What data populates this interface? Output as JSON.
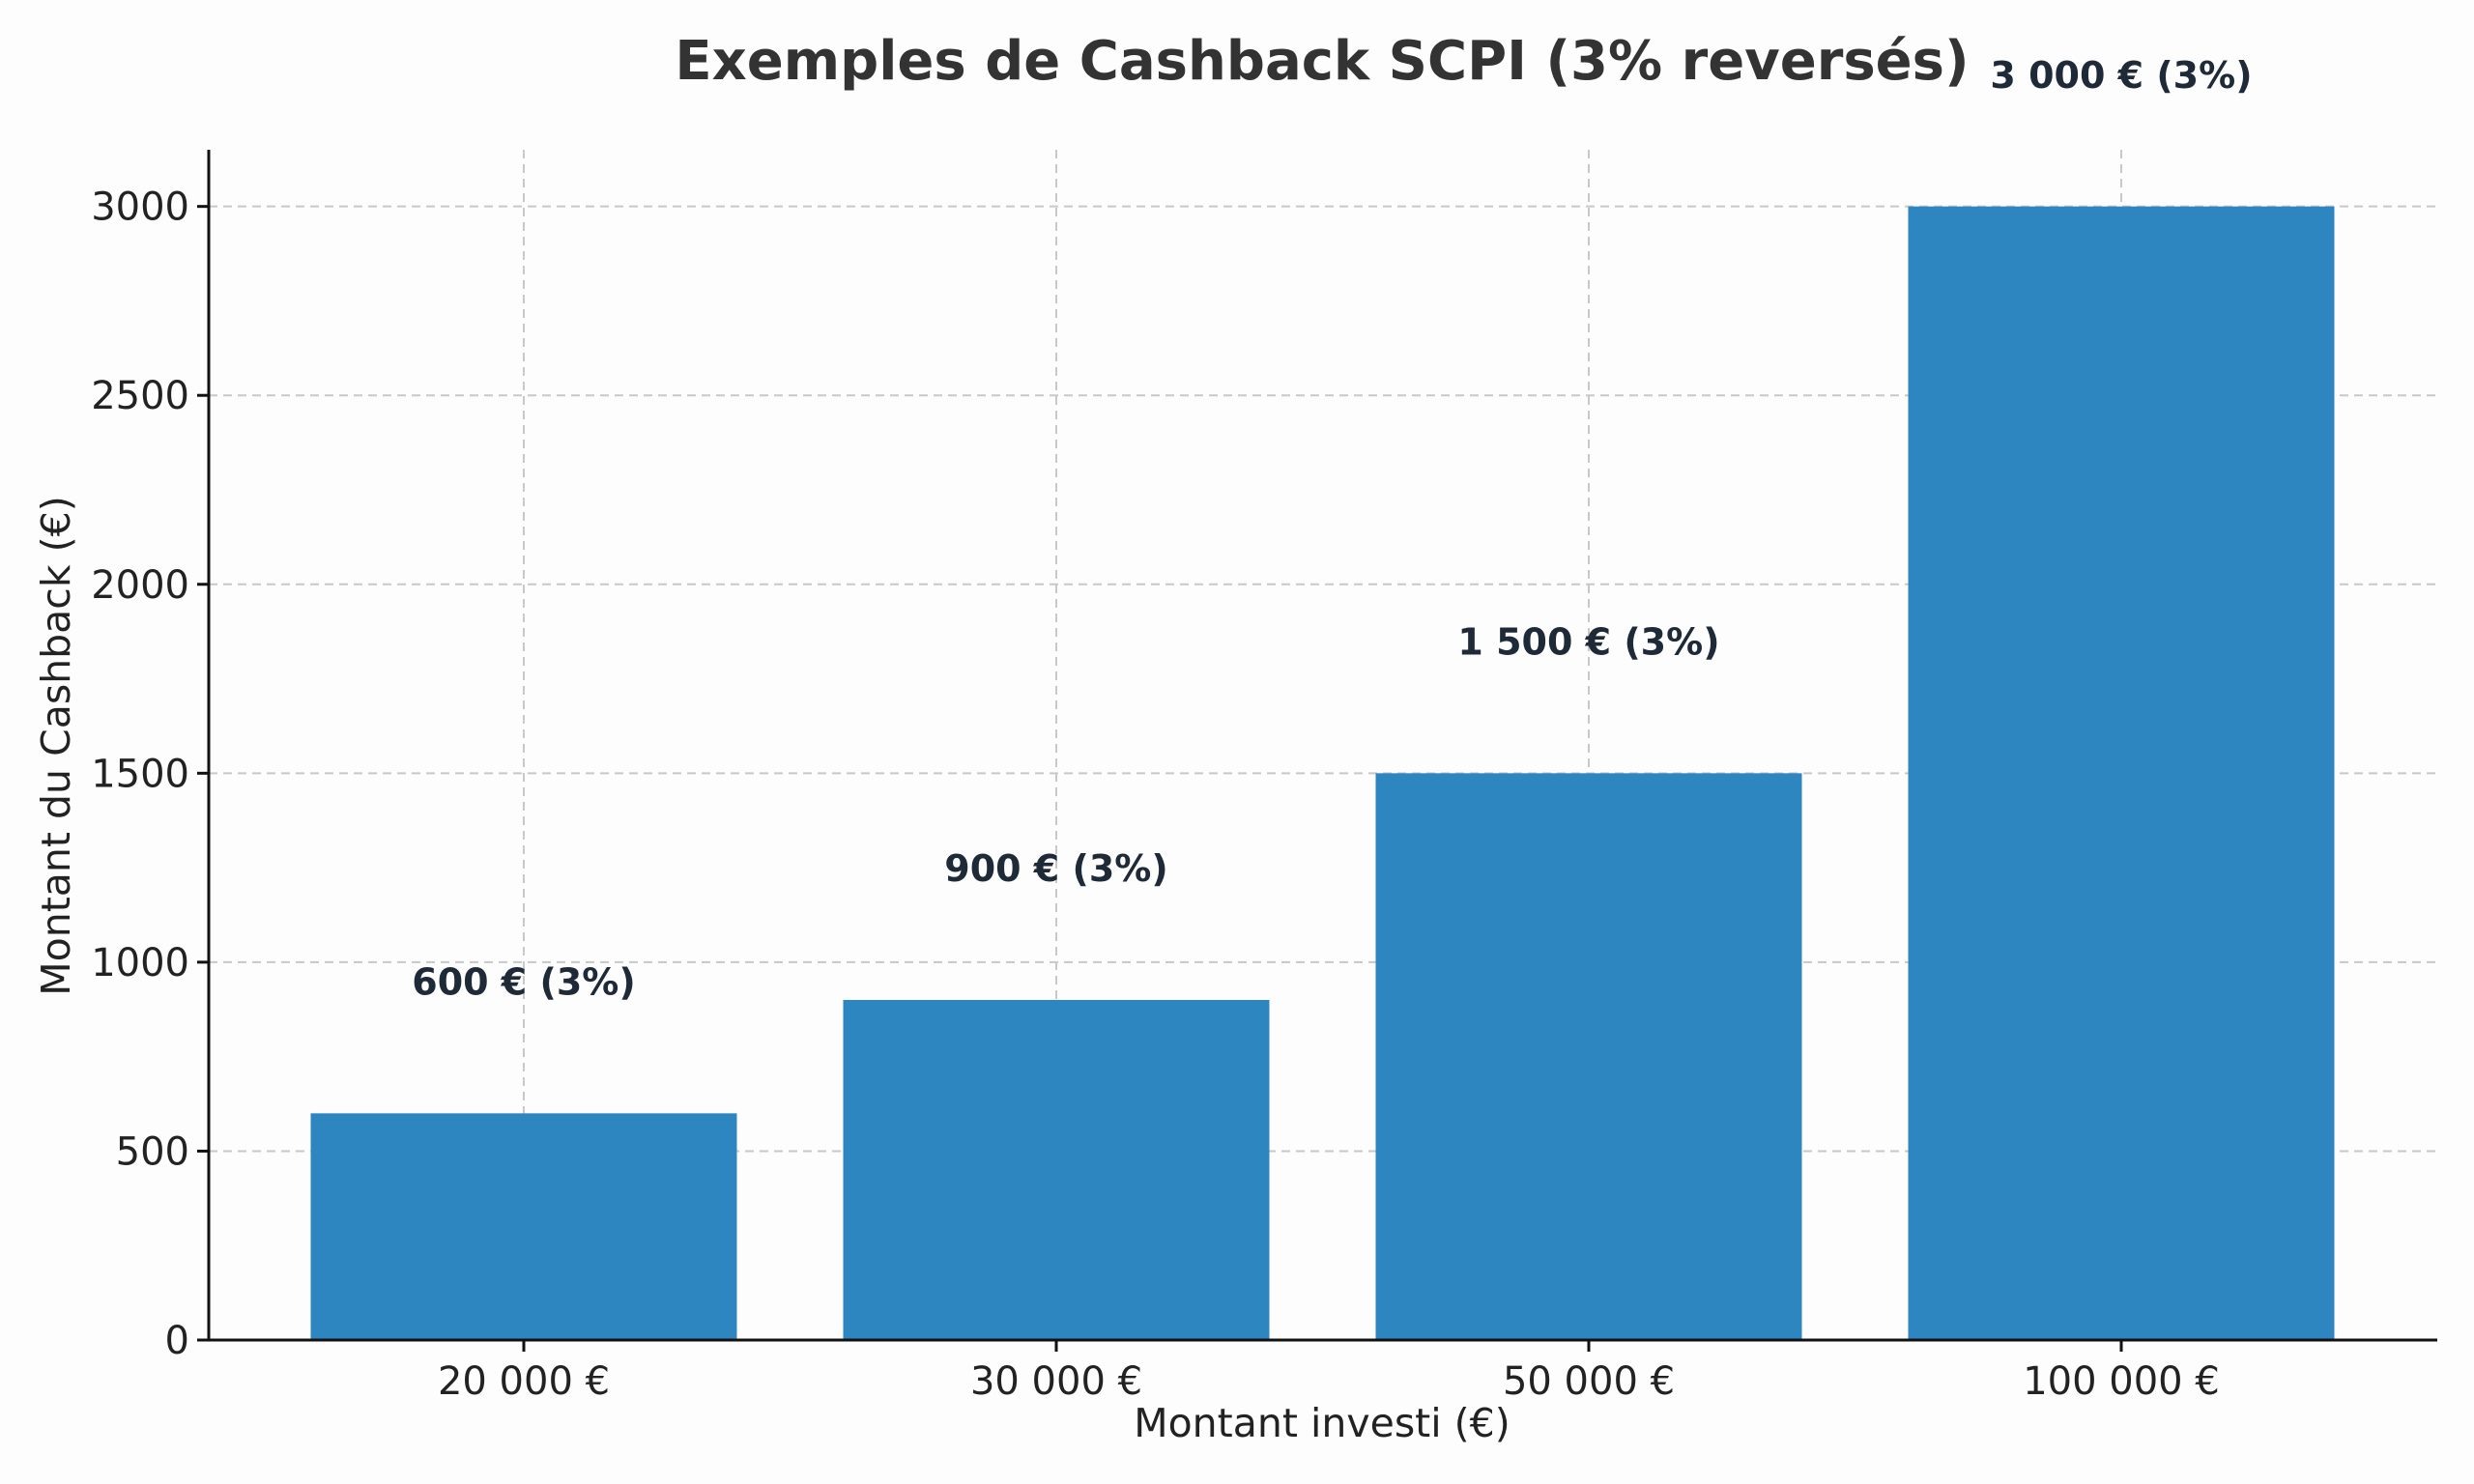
{
  "chart_data": {
    "type": "bar",
    "title": "Exemples de Cashback SCPI (3% reversés)",
    "xlabel": "Montant investi (€)",
    "ylabel": "Montant du Cashback (€)",
    "categories": [
      "20 000 €",
      "30 000 €",
      "50 000 €",
      "100 000 €"
    ],
    "values": [
      600,
      900,
      1500,
      3000
    ],
    "data_labels": [
      "600 € (3%)",
      "900 € (3%)",
      "1 500 € (3%)",
      "3 000 € (3%)"
    ],
    "ylim": [
      0,
      3150
    ],
    "yticks": [
      0,
      500,
      1000,
      1500,
      2000,
      2500,
      3000
    ],
    "grid": true,
    "bar_color": "#2e86c1",
    "label_color": "#1e2a38"
  }
}
